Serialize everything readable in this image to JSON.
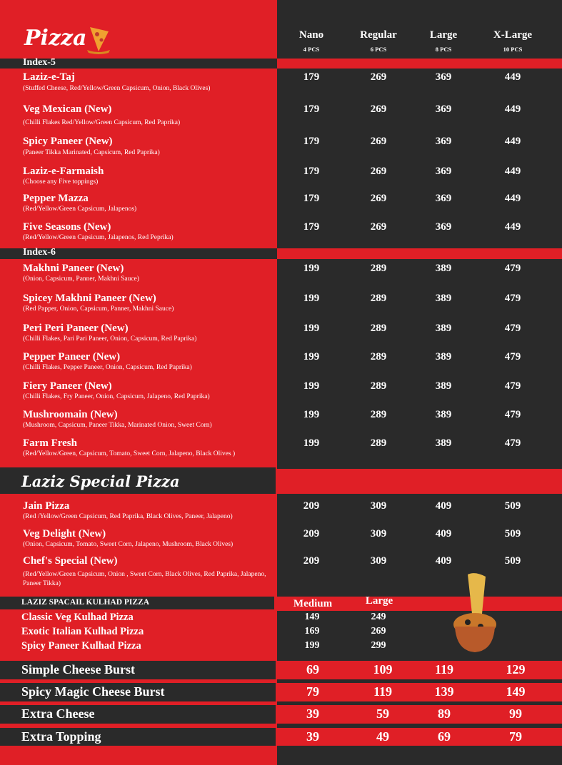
{
  "header": {
    "title": "Pizza",
    "sizes": [
      {
        "label": "Nano",
        "pcs": "4 PCS"
      },
      {
        "label": "Regular",
        "pcs": "6 PCS"
      },
      {
        "label": "Large",
        "pcs": "8 PCS"
      },
      {
        "label": "X-Large",
        "pcs": "10 PCS"
      }
    ]
  },
  "sections": [
    {
      "title": "Index-5",
      "items": [
        {
          "name": "Laziz-e-Taj",
          "desc": "(Stuffed Cheese, Red/Yellow/Green Capsicum, Onion, Black Olives)",
          "prices": [
            "179",
            "269",
            "369",
            "449"
          ]
        },
        {
          "name": "Veg Mexican (New)",
          "desc": "(Chilli Flakes Red/Yellow/Green Capsicum, Red Paprika)",
          "prices": [
            "179",
            "269",
            "369",
            "449"
          ]
        },
        {
          "name": "Spicy Paneer (New)",
          "desc": "(Paneer Tikka Marinated, Capsicum, Red Paprika)",
          "prices": [
            "179",
            "269",
            "369",
            "449"
          ]
        },
        {
          "name": "Laziz-e-Farmaish",
          "desc": "(Choose any Five toppings)",
          "prices": [
            "179",
            "269",
            "369",
            "449"
          ]
        },
        {
          "name": "Pepper Mazza",
          "desc": "(Red/Yellow/Green Capsicum, Jalapenos)",
          "prices": [
            "179",
            "269",
            "369",
            "449"
          ]
        },
        {
          "name": "Five Seasons (New)",
          "desc": "(Red/Yellow/Green Capsicum, Jalapenos, Red Peprika)",
          "prices": [
            "179",
            "269",
            "369",
            "449"
          ]
        }
      ]
    },
    {
      "title": "Index-6",
      "items": [
        {
          "name": "Makhni Paneer (New)",
          "desc": "(Onion, Capsicum, Panner, Makhni Sauce)",
          "prices": [
            "199",
            "289",
            "389",
            "479"
          ]
        },
        {
          "name": "Spicey Makhni Paneer (New)",
          "desc": "(Red Papper, Onion, Capsicum, Panner, Makhni Sauce)",
          "prices": [
            "199",
            "289",
            "389",
            "479"
          ]
        },
        {
          "name": "Peri Peri Paneer (New)",
          "desc": "(Chilli Flakes, Pari Pari Paneer, Onion, Capsicum, Red Paprika)",
          "prices": [
            "199",
            "289",
            "389",
            "479"
          ]
        },
        {
          "name": "Pepper Paneer (New)",
          "desc": "(Chilli Flakes, Pepper Paneer, Onion, Capsicum, Red Paprika)",
          "prices": [
            "199",
            "289",
            "389",
            "479"
          ]
        },
        {
          "name": "Fiery Paneer (New)",
          "desc": "(Chilli Flakes, Fry Paneer, Onion, Capsicum, Jalapeno, Red Paprika)",
          "prices": [
            "199",
            "289",
            "389",
            "479"
          ]
        },
        {
          "name": "Mushroomain (New)",
          "desc": "(Mushroom, Capsicum, Paneer Tikka, Marinated Onion, Sweet Corn)",
          "prices": [
            "199",
            "289",
            "389",
            "479"
          ]
        },
        {
          "name": "Farm Fresh",
          "desc": "(Red/Yellow/Green, Capsicum, Tomato, Sweet Corn, Jalapeno, Black Olives )",
          "prices": [
            "199",
            "289",
            "389",
            "479"
          ]
        }
      ]
    },
    {
      "title": "Laziz Special Pizza",
      "items": [
        {
          "name": "Jain Pizza",
          "desc": "(Red /Yellow/Green Capsicum, Red Paprika, Black Olives, Paneer, Jalapeno)",
          "prices": [
            "209",
            "309",
            "409",
            "509"
          ]
        },
        {
          "name": "Veg Delight (New)",
          "desc": "(Onion, Capsicum, Tomato, Sweet Corn, Jalapeno, Mushroom, Black Olives)",
          "prices": [
            "209",
            "309",
            "409",
            "509"
          ]
        },
        {
          "name": "Chef's Special (New)",
          "desc": "(Red/Yellow/Green Capsicum, Onion , Sweet Corn, Black Olives, Red Paprika, Jalapeno, Paneer Tikka)",
          "prices": [
            "209",
            "309",
            "409",
            "509"
          ]
        }
      ]
    }
  ],
  "kulhad": {
    "title": "LAZIZ SPACAIL KULHAD PIZZA",
    "sizes": [
      "Medium",
      "Large"
    ],
    "items": [
      {
        "name": "Classic Veg Kulhad Pizza",
        "prices": [
          "149",
          "249"
        ]
      },
      {
        "name": "Exotic Italian Kulhad Pizza",
        "prices": [
          "169",
          "269"
        ]
      },
      {
        "name": "Spicy Paneer Kulhad Pizza",
        "prices": [
          "199",
          "299"
        ]
      }
    ]
  },
  "extras": [
    {
      "name": "Simple Cheese Burst",
      "prices": [
        "69",
        "109",
        "119",
        "129"
      ]
    },
    {
      "name": "Spicy Magic Cheese Burst",
      "prices": [
        "79",
        "119",
        "139",
        "149"
      ]
    },
    {
      "name": "Extra Cheese",
      "prices": [
        "39",
        "59",
        "89",
        "99"
      ]
    },
    {
      "name": "Extra Topping",
      "prices": [
        "39",
        "49",
        "69",
        "79"
      ]
    }
  ],
  "colors": {
    "red": "#e01f26",
    "dark": "#2a2a2a"
  }
}
